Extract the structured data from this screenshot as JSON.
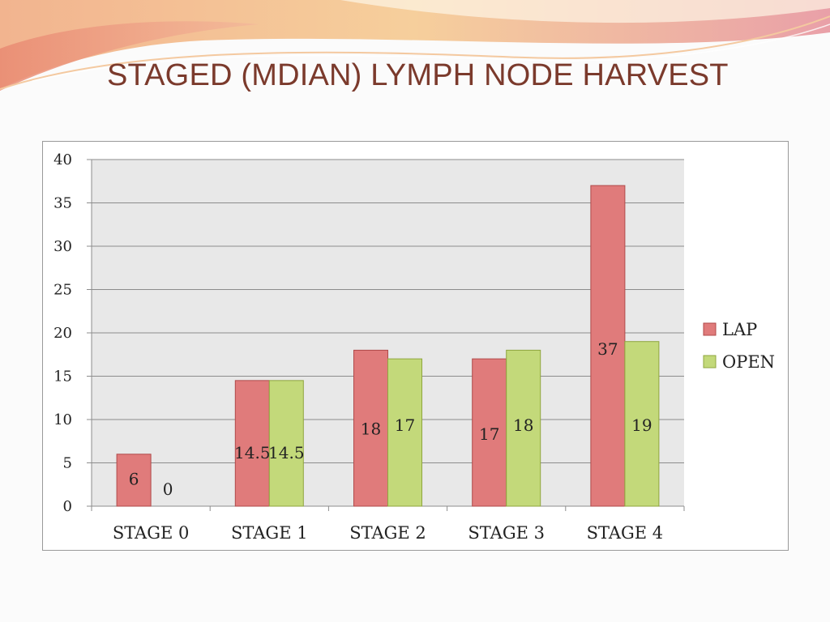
{
  "slide": {
    "title": "STAGED (MDIAN) LYMPH NODE HARVEST"
  },
  "colors": {
    "lap": "#e07b7b",
    "open": "#c3d97a",
    "plot_bg": "#e8e8e8",
    "title": "#7b3a2c",
    "banner": "#e8957a"
  },
  "chart_data": {
    "type": "bar",
    "categories": [
      "STAGE 0",
      "STAGE 1",
      "STAGE 2",
      "STAGE 3",
      "STAGE 4"
    ],
    "series": [
      {
        "name": "LAP",
        "values": [
          6,
          14.5,
          18,
          17,
          37
        ],
        "color": "#e07b7b"
      },
      {
        "name": "OPEN",
        "values": [
          0,
          14.5,
          17,
          18,
          19
        ],
        "color": "#c3d97a"
      }
    ],
    "data_labels": {
      "LAP": [
        "6",
        "14.5",
        "18",
        "17",
        "37"
      ],
      "OPEN": [
        "0",
        "14.5",
        "17",
        "18",
        "19"
      ]
    },
    "y_ticks": [
      "0",
      "5",
      "10",
      "15",
      "20",
      "25",
      "30",
      "35",
      "40"
    ],
    "ylim": [
      0,
      40
    ],
    "grid": true,
    "legend_position": "right",
    "title": "",
    "xlabel": "",
    "ylabel": ""
  }
}
